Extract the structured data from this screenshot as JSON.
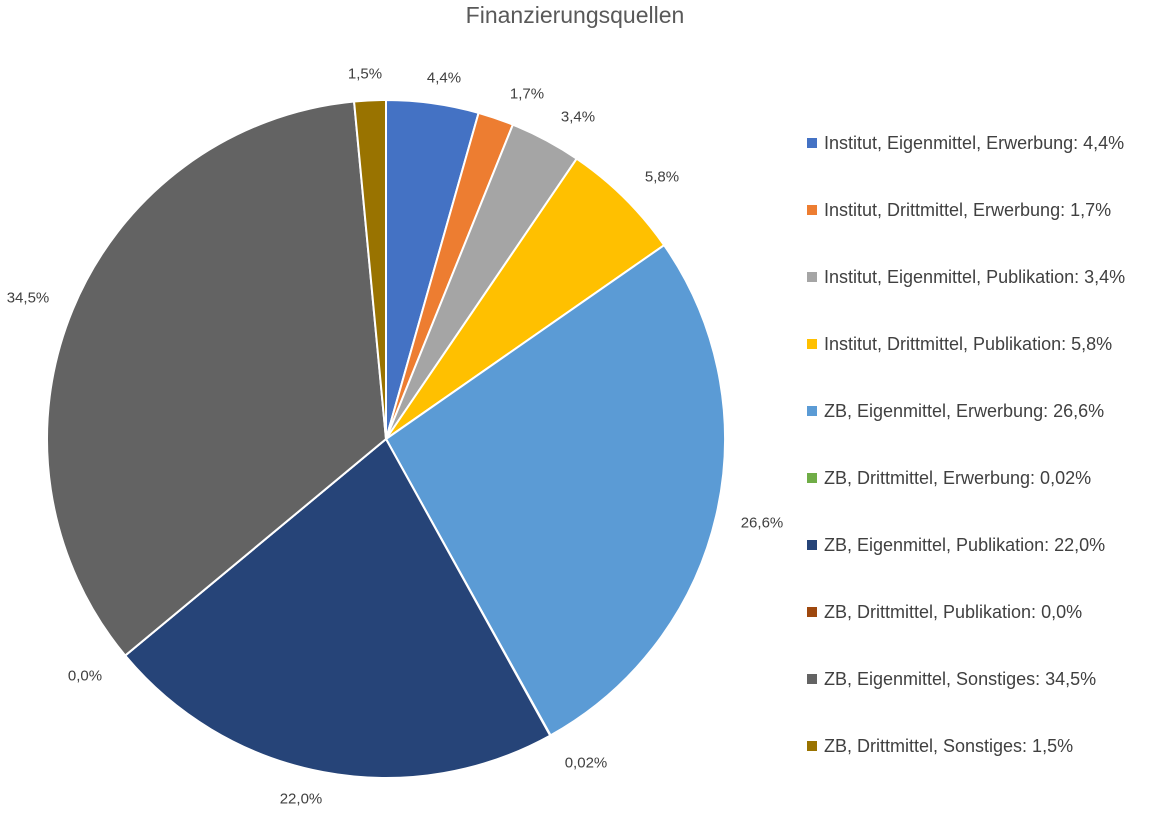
{
  "chart_data": {
    "type": "pie",
    "title": "Finanzierungsquellen",
    "legend_position": "right",
    "categories": [
      "Institut, Eigenmittel, Erwerbung",
      "Institut, Drittmittel, Erwerbung",
      "Institut, Eigenmittel, Publikation",
      "Institut, Drittmittel, Publikation",
      "ZB, Eigenmittel, Erwerbung",
      "ZB, Drittmittel, Erwerbung",
      "ZB, Eigenmittel, Publikation",
      "ZB, Drittmittel, Publikation",
      "ZB, Eigenmittel, Sonstiges",
      "ZB, Drittmittel, Sonstiges"
    ],
    "values": [
      4.4,
      1.7,
      3.4,
      5.8,
      26.6,
      0.02,
      22.0,
      0.0,
      34.5,
      1.5
    ],
    "data_labels": [
      "4,4%",
      "1,7%",
      "3,4%",
      "5,8%",
      "26,6%",
      "0,02%",
      "22,0%",
      "0,0%",
      "34,5%",
      "1,5%"
    ],
    "legend_labels": [
      "Institut, Eigenmittel, Erwerbung: 4,4%",
      "Institut, Drittmittel, Erwerbung: 1,7%",
      "Institut, Eigenmittel, Publikation: 3,4%",
      "Institut, Drittmittel, Publikation: 5,8%",
      "ZB, Eigenmittel, Erwerbung: 26,6%",
      "ZB, Drittmittel, Erwerbung: 0,02%",
      "ZB, Eigenmittel, Publikation: 22,0%",
      "ZB, Drittmittel, Publikation: 0,0%",
      "ZB, Eigenmittel, Sonstiges: 34,5%",
      "ZB, Drittmittel, Sonstiges: 1,5%"
    ],
    "colors": [
      "#4472C4",
      "#ED7D31",
      "#A5A5A5",
      "#FFC000",
      "#5B9BD5",
      "#70AD47",
      "#264478",
      "#9E480E",
      "#636363",
      "#997300"
    ]
  }
}
